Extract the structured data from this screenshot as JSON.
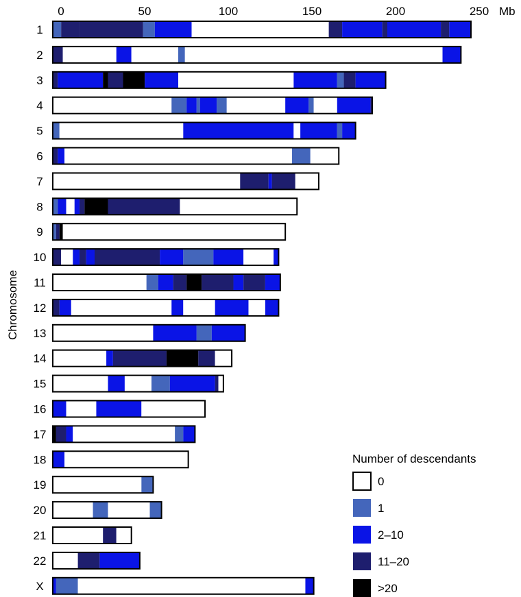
{
  "chart_data": {
    "type": "ideogram",
    "unit_label": "Mb",
    "x_ticks": [
      0,
      50,
      100,
      150,
      200,
      250
    ],
    "x_tick_labels": [
      "0",
      "50",
      "100",
      "150",
      "200",
      "250"
    ],
    "y_axis_label": "Chromosome",
    "legend": {
      "title": "Number of descendants",
      "items": [
        {
          "key": "0",
          "label": "0",
          "color": "#ffffff"
        },
        {
          "key": "1",
          "label": "1",
          "color": "#4466bb"
        },
        {
          "key": "2",
          "label": "2–10",
          "color": "#0a14e6"
        },
        {
          "key": "3",
          "label": "11–20",
          "color": "#1e1e6e"
        },
        {
          "key": "4",
          "label": ">20",
          "color": "#000000"
        }
      ]
    },
    "chromosomes": [
      {
        "name": "1",
        "length": 250,
        "segments": [
          [
            0,
            5,
            1
          ],
          [
            5,
            16,
            3
          ],
          [
            16,
            54,
            3
          ],
          [
            54,
            61,
            1
          ],
          [
            61,
            83,
            2
          ],
          [
            83,
            165,
            0
          ],
          [
            165,
            173,
            3
          ],
          [
            173,
            197,
            2
          ],
          [
            197,
            200,
            3
          ],
          [
            200,
            232,
            2
          ],
          [
            232,
            237,
            3
          ],
          [
            237,
            250,
            2
          ]
        ]
      },
      {
        "name": "2",
        "length": 244,
        "segments": [
          [
            0,
            6,
            3
          ],
          [
            6,
            38,
            0
          ],
          [
            38,
            47,
            2
          ],
          [
            47,
            75,
            0
          ],
          [
            75,
            79,
            1
          ],
          [
            79,
            233,
            0
          ],
          [
            233,
            244,
            2
          ]
        ]
      },
      {
        "name": "3",
        "length": 199,
        "segments": [
          [
            0,
            3,
            3
          ],
          [
            3,
            30,
            2
          ],
          [
            30,
            33,
            4
          ],
          [
            33,
            42,
            3
          ],
          [
            42,
            55,
            4
          ],
          [
            55,
            75,
            2
          ],
          [
            75,
            144,
            0
          ],
          [
            144,
            170,
            2
          ],
          [
            170,
            174,
            1
          ],
          [
            174,
            181,
            3
          ],
          [
            181,
            199,
            2
          ]
        ]
      },
      {
        "name": "4",
        "length": 191,
        "segments": [
          [
            0,
            71,
            0
          ],
          [
            71,
            80,
            1
          ],
          [
            80,
            86,
            2
          ],
          [
            86,
            88,
            1
          ],
          [
            88,
            98,
            2
          ],
          [
            98,
            104,
            1
          ],
          [
            104,
            139,
            0
          ],
          [
            139,
            153,
            2
          ],
          [
            153,
            156,
            1
          ],
          [
            156,
            170,
            0
          ],
          [
            170,
            190,
            2
          ],
          [
            190,
            191,
            3
          ]
        ]
      },
      {
        "name": "5",
        "length": 181,
        "segments": [
          [
            0,
            4,
            1
          ],
          [
            4,
            78,
            0
          ],
          [
            78,
            144,
            2
          ],
          [
            144,
            148,
            0
          ],
          [
            148,
            170,
            2
          ],
          [
            170,
            173,
            1
          ],
          [
            173,
            181,
            2
          ]
        ]
      },
      {
        "name": "6",
        "length": 171,
        "segments": [
          [
            0,
            3,
            3
          ],
          [
            3,
            7,
            2
          ],
          [
            7,
            143,
            0
          ],
          [
            143,
            154,
            1
          ],
          [
            154,
            171,
            0
          ]
        ]
      },
      {
        "name": "7",
        "length": 159,
        "segments": [
          [
            0,
            112,
            0
          ],
          [
            112,
            129,
            3
          ],
          [
            129,
            131,
            2
          ],
          [
            131,
            145,
            3
          ],
          [
            145,
            159,
            0
          ]
        ]
      },
      {
        "name": "8",
        "length": 146,
        "segments": [
          [
            0,
            3,
            1
          ],
          [
            3,
            8,
            2
          ],
          [
            8,
            13,
            0
          ],
          [
            13,
            16,
            2
          ],
          [
            16,
            19,
            3
          ],
          [
            19,
            33,
            4
          ],
          [
            33,
            76,
            3
          ],
          [
            76,
            146,
            0
          ]
        ]
      },
      {
        "name": "9",
        "length": 139,
        "segments": [
          [
            0,
            2,
            1
          ],
          [
            2,
            4,
            3
          ],
          [
            4,
            6,
            4
          ],
          [
            6,
            139,
            0
          ]
        ]
      },
      {
        "name": "10",
        "length": 135,
        "segments": [
          [
            0,
            5,
            3
          ],
          [
            5,
            12,
            0
          ],
          [
            12,
            16,
            2
          ],
          [
            16,
            20,
            3
          ],
          [
            20,
            25,
            2
          ],
          [
            25,
            64,
            3
          ],
          [
            64,
            78,
            2
          ],
          [
            78,
            96,
            1
          ],
          [
            96,
            114,
            2
          ],
          [
            114,
            132,
            0
          ],
          [
            132,
            135,
            2
          ]
        ]
      },
      {
        "name": "11",
        "length": 136,
        "segments": [
          [
            0,
            56,
            0
          ],
          [
            56,
            63,
            1
          ],
          [
            63,
            72,
            2
          ],
          [
            72,
            80,
            3
          ],
          [
            80,
            89,
            4
          ],
          [
            89,
            108,
            3
          ],
          [
            108,
            114,
            2
          ],
          [
            114,
            127,
            3
          ],
          [
            127,
            136,
            2
          ]
        ]
      },
      {
        "name": "12",
        "length": 135,
        "segments": [
          [
            0,
            4,
            3
          ],
          [
            4,
            11,
            2
          ],
          [
            11,
            71,
            0
          ],
          [
            71,
            78,
            2
          ],
          [
            78,
            97,
            0
          ],
          [
            97,
            117,
            2
          ],
          [
            117,
            127,
            0
          ],
          [
            127,
            135,
            2
          ]
        ]
      },
      {
        "name": "13",
        "length": 115,
        "segments": [
          [
            0,
            60,
            0
          ],
          [
            60,
            86,
            2
          ],
          [
            86,
            95,
            1
          ],
          [
            95,
            115,
            2
          ]
        ]
      },
      {
        "name": "14",
        "length": 107,
        "segments": [
          [
            0,
            32,
            0
          ],
          [
            32,
            36,
            2
          ],
          [
            36,
            68,
            3
          ],
          [
            68,
            87,
            4
          ],
          [
            87,
            97,
            3
          ],
          [
            97,
            107,
            0
          ]
        ]
      },
      {
        "name": "15",
        "length": 102,
        "segments": [
          [
            0,
            33,
            0
          ],
          [
            33,
            43,
            2
          ],
          [
            43,
            59,
            0
          ],
          [
            59,
            70,
            1
          ],
          [
            70,
            97,
            2
          ],
          [
            97,
            99,
            3
          ],
          [
            99,
            102,
            0
          ]
        ]
      },
      {
        "name": "16",
        "length": 91,
        "segments": [
          [
            0,
            8,
            2
          ],
          [
            8,
            26,
            0
          ],
          [
            26,
            53,
            2
          ],
          [
            53,
            91,
            0
          ]
        ]
      },
      {
        "name": "17",
        "length": 85,
        "segments": [
          [
            0,
            2,
            4
          ],
          [
            2,
            8,
            3
          ],
          [
            8,
            12,
            2
          ],
          [
            12,
            73,
            0
          ],
          [
            73,
            78,
            1
          ],
          [
            78,
            85,
            2
          ]
        ]
      },
      {
        "name": "18",
        "length": 81,
        "segments": [
          [
            0,
            7,
            2
          ],
          [
            7,
            81,
            0
          ]
        ]
      },
      {
        "name": "19",
        "length": 60,
        "segments": [
          [
            0,
            53,
            0
          ],
          [
            53,
            60,
            1
          ]
        ]
      },
      {
        "name": "20",
        "length": 65,
        "segments": [
          [
            0,
            24,
            0
          ],
          [
            24,
            33,
            1
          ],
          [
            33,
            58,
            0
          ],
          [
            58,
            65,
            1
          ]
        ]
      },
      {
        "name": "21",
        "length": 47,
        "segments": [
          [
            0,
            30,
            0
          ],
          [
            30,
            38,
            3
          ],
          [
            38,
            47,
            0
          ]
        ]
      },
      {
        "name": "22",
        "length": 52,
        "segments": [
          [
            0,
            15,
            0
          ],
          [
            15,
            28,
            3
          ],
          [
            28,
            52,
            2
          ]
        ]
      },
      {
        "name": "X",
        "length": 156,
        "segments": [
          [
            0,
            2,
            2
          ],
          [
            2,
            15,
            1
          ],
          [
            15,
            151,
            0
          ],
          [
            151,
            156,
            2
          ]
        ]
      }
    ]
  }
}
